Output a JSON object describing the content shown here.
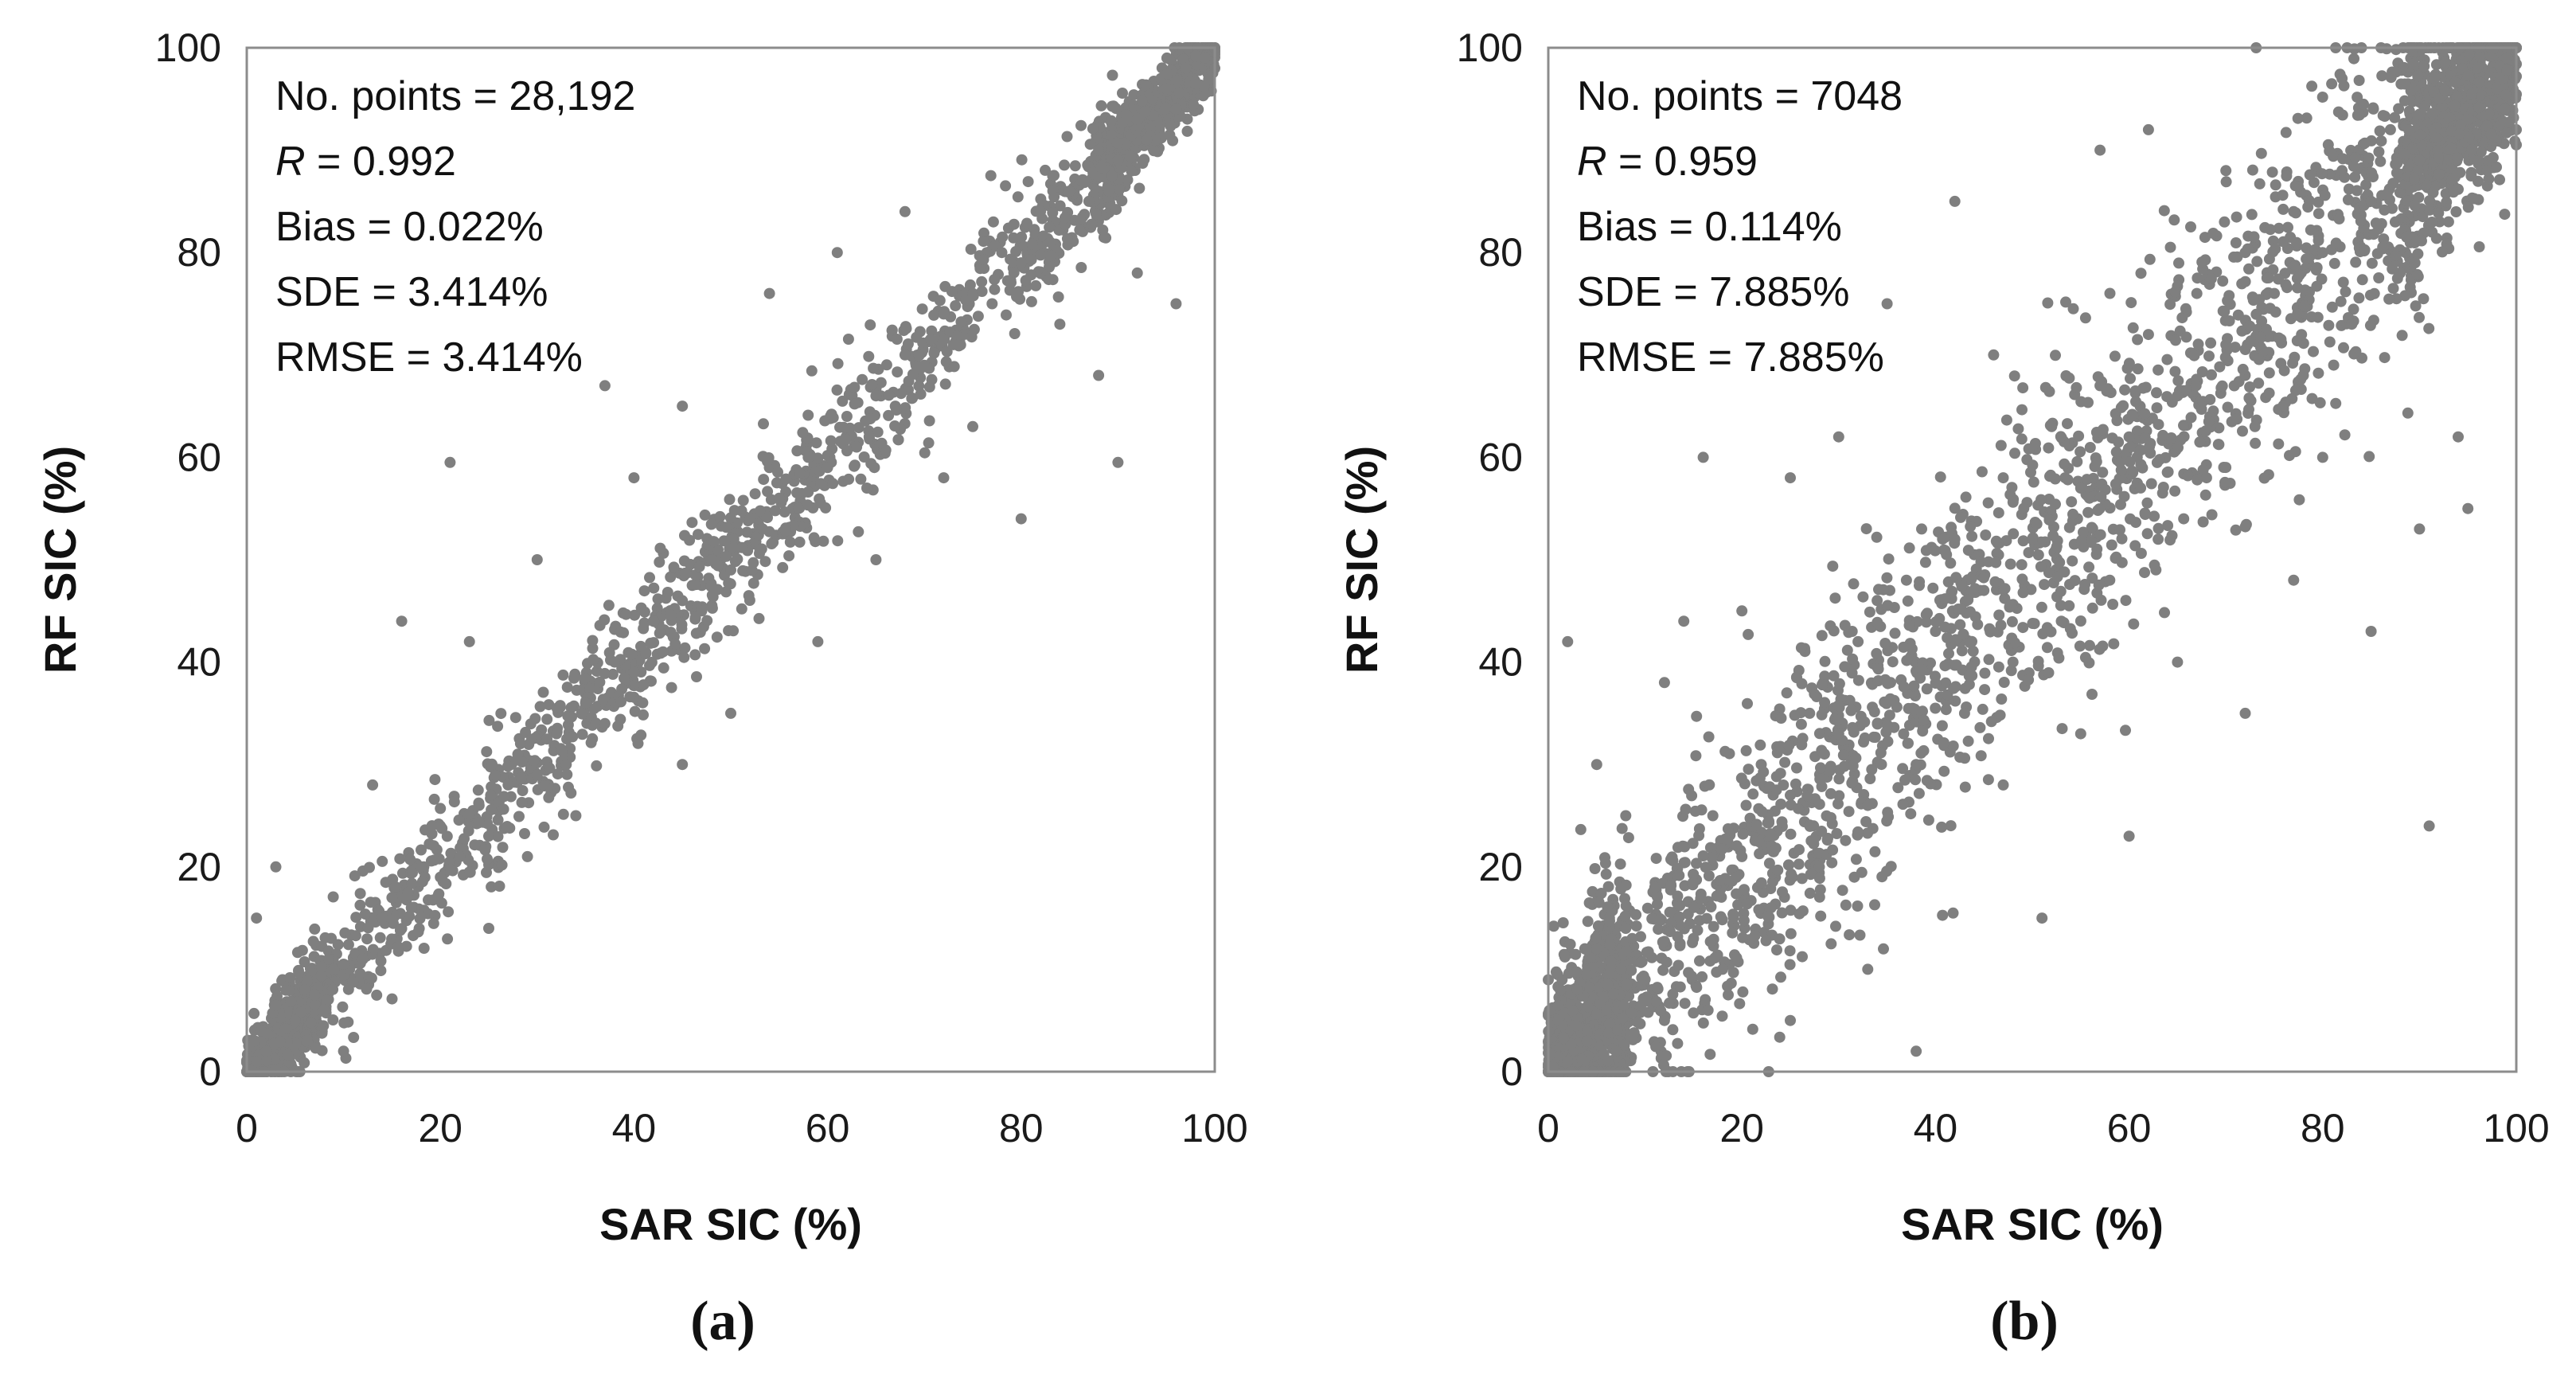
{
  "chart_data": [
    {
      "type": "scatter",
      "panel_label": "(a)",
      "xlabel": "SAR SIC (%)",
      "ylabel": "RF SIC (%)",
      "xlim": [
        0,
        100
      ],
      "ylim": [
        0,
        100
      ],
      "xticks": [
        "0",
        "20",
        "40",
        "60",
        "80",
        "100"
      ],
      "yticks": [
        "0",
        "20",
        "40",
        "60",
        "80",
        "100"
      ],
      "marker_color": "#7f7f7f",
      "grid": false,
      "stats": {
        "points": "No. points = 28,192",
        "r_symbol": "R",
        "r_value": " = 0.992",
        "bias": "Bias = 0.022%",
        "sde": "SDE = 3.414%",
        "rmse": "RMSE = 3.414%"
      },
      "n_points": 28192,
      "r": 0.992,
      "bias_pct": 0.022,
      "sde_pct": 3.414,
      "rmse_pct": 3.414,
      "points": [
        [
          0.5,
          0.2
        ],
        [
          0.8,
          3.0
        ],
        [
          1.0,
          1.0
        ],
        [
          1.5,
          4.0
        ],
        [
          2.0,
          2.0
        ],
        [
          3.0,
          6.5
        ],
        [
          4.0,
          4.2
        ],
        [
          5.0,
          5.0
        ],
        [
          6.0,
          8.0
        ],
        [
          7.0,
          7.5
        ],
        [
          8.0,
          6.0
        ],
        [
          9.0,
          10.0
        ],
        [
          10.0,
          10.5
        ],
        [
          12.0,
          11.0
        ],
        [
          14.0,
          15.0
        ],
        [
          15.0,
          17.0
        ],
        [
          17.0,
          16.0
        ],
        [
          18.0,
          20.0
        ],
        [
          20.0,
          19.0
        ],
        [
          20.0,
          24.0
        ],
        [
          22.0,
          21.0
        ],
        [
          24.0,
          26.0
        ],
        [
          25.0,
          23.0
        ],
        [
          27.0,
          28.0
        ],
        [
          28.0,
          31.0
        ],
        [
          30.0,
          29.0
        ],
        [
          32.0,
          33.0
        ],
        [
          33.0,
          30.0
        ],
        [
          35.0,
          36.0
        ],
        [
          37.0,
          34.0
        ],
        [
          38.0,
          40.0
        ],
        [
          40.0,
          39.0
        ],
        [
          42.0,
          44.0
        ],
        [
          43.0,
          41.0
        ],
        [
          45.0,
          46.0
        ],
        [
          47.0,
          45.0
        ],
        [
          48.0,
          50.0
        ],
        [
          50.0,
          49.0
        ],
        [
          52.0,
          54.0
        ],
        [
          53.0,
          51.0
        ],
        [
          55.0,
          56.0
        ],
        [
          57.0,
          55.0
        ],
        [
          58.0,
          60.0
        ],
        [
          60.0,
          59.0
        ],
        [
          62.0,
          64.0
        ],
        [
          63.0,
          61.0
        ],
        [
          65.0,
          66.0
        ],
        [
          67.0,
          65.0
        ],
        [
          68.0,
          70.0
        ],
        [
          70.0,
          69.0
        ],
        [
          72.0,
          74.0
        ],
        [
          73.0,
          71.0
        ],
        [
          75.0,
          76.0
        ],
        [
          77.0,
          75.0
        ],
        [
          78.0,
          80.0
        ],
        [
          80.0,
          79.0
        ],
        [
          82.0,
          84.0
        ],
        [
          83.0,
          81.0
        ],
        [
          85.0,
          86.0
        ],
        [
          87.0,
          85.0
        ],
        [
          88.0,
          90.0
        ],
        [
          90.0,
          89.0
        ],
        [
          92.0,
          93.0
        ],
        [
          93.0,
          91.0
        ],
        [
          95.0,
          96.0
        ],
        [
          96.0,
          94.0
        ],
        [
          97.0,
          98.0
        ],
        [
          98.0,
          96.5
        ],
        [
          99.0,
          99.0
        ],
        [
          100.0,
          98.0
        ],
        [
          100.0,
          100.0
        ],
        [
          21.0,
          59.5
        ],
        [
          16.0,
          44.0
        ],
        [
          37.0,
          67.0
        ],
        [
          54.0,
          76.0
        ],
        [
          61.0,
          80.0
        ],
        [
          90.0,
          59.5
        ],
        [
          80.0,
          54.0
        ],
        [
          72.0,
          58.0
        ],
        [
          96.0,
          75.0
        ],
        [
          59.0,
          42.0
        ],
        [
          45.0,
          30.0
        ],
        [
          34.0,
          25.0
        ],
        [
          25.0,
          14.0
        ],
        [
          29.0,
          21.0
        ],
        [
          23.0,
          42.0
        ],
        [
          30.0,
          50.0
        ],
        [
          45.0,
          65.0
        ],
        [
          68.0,
          84.0
        ],
        [
          75.0,
          63.0
        ],
        [
          84.0,
          73.0
        ],
        [
          92.0,
          78.0
        ],
        [
          88.0,
          68.0
        ],
        [
          40.0,
          58.0
        ],
        [
          50.0,
          35.0
        ],
        [
          3.0,
          20.0
        ],
        [
          1.0,
          15.0
        ],
        [
          10.0,
          2.0
        ],
        [
          13.0,
          28.0
        ],
        [
          65.0,
          50.0
        ]
      ]
    },
    {
      "type": "scatter",
      "panel_label": "(b)",
      "xlabel": "SAR SIC (%)",
      "ylabel": "RF SIC (%)",
      "xlim": [
        0,
        100
      ],
      "ylim": [
        0,
        100
      ],
      "xticks": [
        "0",
        "20",
        "40",
        "60",
        "80",
        "100"
      ],
      "yticks": [
        "0",
        "20",
        "40",
        "60",
        "80",
        "100"
      ],
      "marker_color": "#7f7f7f",
      "grid": false,
      "stats": {
        "points": "No. points = 7048",
        "r_symbol": "R",
        "r_value": " = 0.959",
        "bias": "Bias = 0.114%",
        "sde": "SDE = 7.885%",
        "rmse": "RMSE = 7.885%"
      },
      "n_points": 7048,
      "r": 0.959,
      "bias_pct": 0.114,
      "sde_pct": 7.885,
      "rmse_pct": 7.885,
      "points": [
        [
          0.5,
          0.5
        ],
        [
          1.0,
          5.0
        ],
        [
          2.0,
          1.0
        ],
        [
          3.0,
          8.0
        ],
        [
          4.0,
          3.0
        ],
        [
          5.0,
          12.0
        ],
        [
          6.0,
          6.0
        ],
        [
          7.0,
          2.0
        ],
        [
          8.0,
          14.0
        ],
        [
          10.0,
          9.0
        ],
        [
          11.0,
          18.0
        ],
        [
          12.0,
          5.0
        ],
        [
          14.0,
          22.0
        ],
        [
          15.0,
          13.0
        ],
        [
          17.0,
          25.0
        ],
        [
          18.0,
          10.0
        ],
        [
          20.0,
          21.0
        ],
        [
          22.0,
          30.0
        ],
        [
          23.0,
          16.0
        ],
        [
          25.0,
          27.0
        ],
        [
          27.0,
          35.0
        ],
        [
          28.0,
          20.0
        ],
        [
          30.0,
          33.0
        ],
        [
          32.0,
          42.0
        ],
        [
          33.0,
          26.0
        ],
        [
          35.0,
          38.0
        ],
        [
          37.0,
          48.0
        ],
        [
          38.0,
          30.0
        ],
        [
          40.0,
          43.0
        ],
        [
          42.0,
          52.0
        ],
        [
          43.0,
          35.0
        ],
        [
          45.0,
          47.0
        ],
        [
          47.0,
          58.0
        ],
        [
          48.0,
          40.0
        ],
        [
          50.0,
          52.0
        ],
        [
          52.0,
          63.0
        ],
        [
          53.0,
          44.0
        ],
        [
          55.0,
          57.0
        ],
        [
          57.0,
          67.0
        ],
        [
          58.0,
          48.0
        ],
        [
          60.0,
          62.0
        ],
        [
          62.0,
          72.0
        ],
        [
          63.0,
          52.0
        ],
        [
          65.0,
          66.0
        ],
        [
          67.0,
          76.0
        ],
        [
          68.0,
          58.0
        ],
        [
          70.0,
          71.0
        ],
        [
          72.0,
          80.0
        ],
        [
          73.0,
          63.0
        ],
        [
          75.0,
          76.0
        ],
        [
          77.0,
          84.0
        ],
        [
          78.0,
          68.0
        ],
        [
          80.0,
          80.0
        ],
        [
          82.0,
          88.0
        ],
        [
          83.0,
          73.0
        ],
        [
          85.0,
          85.0
        ],
        [
          87.0,
          92.0
        ],
        [
          88.0,
          78.0
        ],
        [
          90.0,
          89.0
        ],
        [
          92.0,
          95.0
        ],
        [
          93.0,
          83.0
        ],
        [
          95.0,
          93.0
        ],
        [
          96.0,
          98.0
        ],
        [
          97.0,
          88.0
        ],
        [
          98.0,
          96.0
        ],
        [
          99.0,
          99.0
        ],
        [
          100.0,
          92.0
        ],
        [
          100.0,
          100.0
        ],
        [
          91.0,
          24.0
        ],
        [
          38.0,
          2.0
        ],
        [
          16.0,
          60.0
        ],
        [
          14.0,
          44.0
        ],
        [
          2.0,
          42.0
        ],
        [
          42.0,
          85.0
        ],
        [
          62.0,
          92.0
        ],
        [
          57.0,
          90.0
        ],
        [
          82.0,
          97.0
        ],
        [
          95.0,
          55.0
        ],
        [
          94.0,
          62.0
        ],
        [
          90.0,
          53.0
        ],
        [
          85.0,
          43.0
        ],
        [
          72.0,
          35.0
        ],
        [
          77.0,
          48.0
        ],
        [
          60.0,
          23.0
        ],
        [
          51.0,
          15.0
        ],
        [
          30.0,
          62.0
        ],
        [
          25.0,
          58.0
        ],
        [
          20.0,
          45.0
        ],
        [
          35.0,
          75.0
        ],
        [
          46.0,
          70.0
        ],
        [
          8.0,
          25.0
        ],
        [
          12.0,
          38.0
        ],
        [
          5.0,
          30.0
        ],
        [
          55.0,
          33.0
        ],
        [
          65.0,
          40.0
        ],
        [
          80.0,
          60.0
        ],
        [
          47.0,
          28.0
        ],
        [
          33.0,
          10.0
        ],
        [
          70.0,
          88.0
        ],
        [
          25.0,
          5.0
        ]
      ]
    }
  ]
}
